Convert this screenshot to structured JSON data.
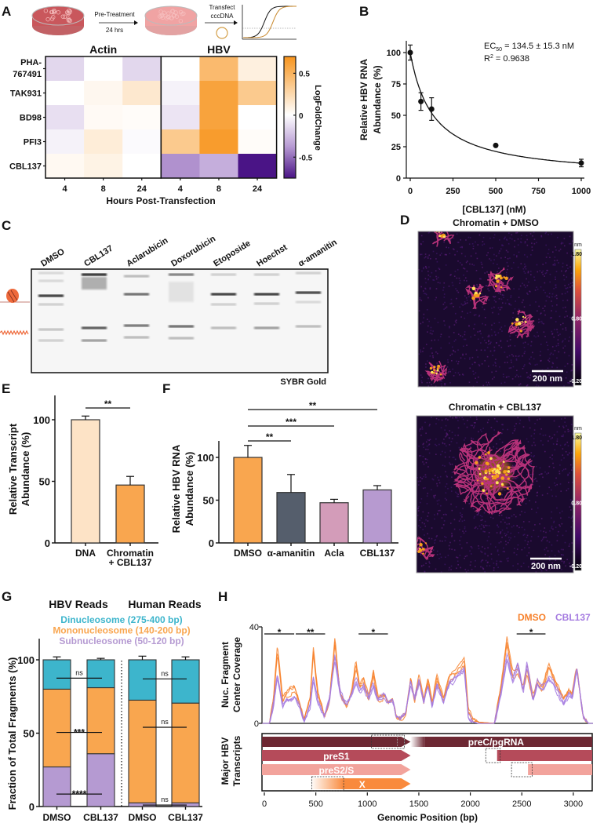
{
  "panel_labels": [
    "A",
    "B",
    "C",
    "D",
    "E",
    "F",
    "G",
    "H"
  ],
  "schematic": {
    "step1": "Pre-Treatment",
    "step1_time": "24 hrs",
    "step2_line1": "Transfect",
    "step2_line2": "cccDNA",
    "colors": {
      "dish1": "#c9575c",
      "dish2": "#f0a3a3",
      "curve_control": "#111111",
      "curve_treated": "#c8892e"
    }
  },
  "chart_data": [
    {
      "id": "A",
      "type": "heatmap",
      "groups": [
        "Actin",
        "HBV"
      ],
      "rows": [
        "PHA-767491",
        "TAK931",
        "BD98",
        "PFI3",
        "CBL137"
      ],
      "columns": [
        "4",
        "8",
        "24",
        "4",
        "8",
        "24"
      ],
      "xlabel": "Hours Post-Transfection",
      "colorbar_label": "LogFoldChange",
      "colorbar_ticks": [
        "0.5",
        "0",
        "-0.5"
      ],
      "colorbar_tick_values": [
        0.5,
        0,
        -0.5
      ],
      "zlim": [
        -0.75,
        0.7
      ],
      "values": [
        [
          -0.15,
          0.0,
          -0.15,
          0.0,
          0.45,
          0.1
        ],
        [
          0.0,
          0.05,
          0.15,
          -0.05,
          0.6,
          0.35
        ],
        [
          -0.12,
          0.03,
          0.02,
          -0.1,
          0.6,
          0.0
        ],
        [
          -0.05,
          0.12,
          -0.02,
          0.35,
          0.65,
          0.02
        ],
        [
          0.04,
          0.08,
          0.0,
          -0.4,
          -0.3,
          -0.75
        ]
      ],
      "colors": {
        "positive": "#f7941d",
        "zero": "#ffffff",
        "mid_negative": "#b79ad3",
        "negative": "#4a1486"
      }
    },
    {
      "id": "B",
      "type": "scatter",
      "x": [
        0,
        62.5,
        125,
        500,
        1000
      ],
      "y": [
        100,
        61,
        55,
        26,
        12
      ],
      "yerr": [
        6,
        7,
        9,
        0,
        3
      ],
      "xlabel": "[CBL137] (nM)",
      "ylabel_lines": [
        "Relative HBV RNA",
        "Abundance (%)"
      ],
      "xticks": [
        0,
        250,
        500,
        750,
        1000
      ],
      "yticks": [
        0,
        25,
        50,
        75,
        100
      ],
      "xlim": [
        0,
        1000
      ],
      "ylim": [
        0,
        110
      ],
      "fit": {
        "ec50": 134.5
      },
      "annotation": {
        "ec50_prefix": "EC",
        "ec50_sub": "50",
        "ec50_value": " = 134.5 ± 15.3 nM",
        "r2_prefix": "R",
        "r2_sup": "2",
        "r2_value": " = 0.9638"
      }
    },
    {
      "id": "E",
      "type": "bar",
      "categories": [
        "DNA",
        "Chromatin"
      ],
      "category_sublabel": "+ CBL137",
      "values": [
        100,
        47
      ],
      "errors": [
        3,
        7
      ],
      "colors": [
        "#fde3c6",
        "#f9a64f"
      ],
      "ylabel_lines": [
        "Relative Transcript",
        "Abundance (%)"
      ],
      "yticks": [
        0,
        50,
        100
      ],
      "ylim": [
        0,
        120
      ],
      "significance": [
        {
          "from": 0,
          "to": 1,
          "label": "**"
        }
      ]
    },
    {
      "id": "F",
      "type": "bar",
      "categories": [
        "DMSO",
        "α-amanitin",
        "Acla",
        "CBL137"
      ],
      "values": [
        100,
        59,
        47,
        62
      ],
      "errors": [
        14,
        21,
        4,
        5
      ],
      "colors": [
        "#f9a64f",
        "#555e6c",
        "#d39cb9",
        "#b79ad0"
      ],
      "ylabel_lines": [
        "Relative HBV RNA",
        "Abundance (%)"
      ],
      "yticks": [
        0,
        50,
        100
      ],
      "ylim": [
        0,
        120
      ],
      "significance": [
        {
          "from": 0,
          "to": 1,
          "label": "**"
        },
        {
          "from": 0,
          "to": 2,
          "label": "***"
        },
        {
          "from": 0,
          "to": 3,
          "label": "**"
        }
      ]
    },
    {
      "id": "G",
      "type": "bar",
      "stacked": true,
      "groups": [
        "HBV Reads",
        "Human Reads"
      ],
      "categories": [
        "DMSO",
        "CBL137",
        "DMSO",
        "CBL137"
      ],
      "legend": [
        "Dinucleosome (275-400 bp)",
        "Mononucleosome (140-200 bp)",
        "Subnucleosome (50-120 bp)"
      ],
      "series": [
        {
          "name": "Subnucleosome (50-120 bp)",
          "color": "#b59ad2",
          "values": [
            27,
            36,
            2.5,
            2.5
          ],
          "errors": [
            3,
            2,
            0.5,
            0.5
          ]
        },
        {
          "name": "Mononucleosome (140-200 bp)",
          "color": "#f9a64f",
          "values": [
            53,
            45,
            70,
            68
          ],
          "errors": [
            2,
            1.5,
            3,
            1.5
          ]
        },
        {
          "name": "Dinucleosome (275-400 bp)",
          "color": "#3db5cc",
          "values": [
            20,
            19,
            27.5,
            29.5
          ],
          "errors": [
            2,
            1,
            2.5,
            2
          ]
        }
      ],
      "ylabel": "Fraction of Total Fragments (%)",
      "yticks": [
        0,
        50,
        100
      ],
      "ylim": [
        0,
        105
      ],
      "significance": [
        {
          "group": 0,
          "level": 87.5,
          "label": "ns"
        },
        {
          "group": 0,
          "level": 50.5,
          "label": "***"
        },
        {
          "group": 0,
          "level": 8.5,
          "label": "****"
        },
        {
          "group": 1,
          "level": 87,
          "label": "ns"
        },
        {
          "group": 1,
          "level": 54,
          "label": "ns"
        },
        {
          "group": 1,
          "level": 1,
          "label": "ns"
        }
      ]
    },
    {
      "id": "H",
      "type": "line",
      "xlabel": "Genomic Position (bp)",
      "ylabel_lines": [
        "Nuc. Fragment",
        "Center Coverage"
      ],
      "xticks": [
        0,
        500,
        1000,
        1500,
        2000,
        2500,
        3000
      ],
      "yticks": [
        0,
        40
      ],
      "xlim": [
        0,
        3200
      ],
      "ylim": [
        0,
        40
      ],
      "series": [
        {
          "name": "DMSO",
          "color": "#f7812b",
          "replicates": 3
        },
        {
          "name": "CBL137",
          "color": "#a57be0",
          "replicates": 3
        }
      ],
      "profile": {
        "bp": [
          0,
          50,
          90,
          127,
          178,
          215,
          292,
          343,
          386,
          444,
          477,
          520,
          584,
          634,
          685,
          736,
          800,
          850,
          888,
          926,
          964,
          1015,
          1058,
          1104,
          1168,
          1205,
          1244,
          1282,
          1320,
          1371,
          1421,
          1459,
          1503,
          1548,
          1589,
          1629,
          1675,
          1739,
          1802,
          1865,
          1942,
          1980,
          2030,
          2081,
          2234,
          2297,
          2355,
          2411,
          2462,
          2513,
          2551,
          2609,
          2652,
          2698,
          2761,
          2817,
          2906,
          2957,
          2990,
          3033,
          3096,
          3147,
          3200
        ],
        "DMSO": [
          0,
          0,
          10,
          31,
          10,
          12,
          15,
          8,
          2,
          10,
          30,
          12,
          3,
          10,
          34,
          12,
          7,
          13,
          24,
          15,
          18,
          10,
          21,
          10,
          12,
          9,
          10,
          3,
          2,
          4,
          19,
          10,
          19,
          9,
          18,
          8,
          19,
          10,
          19,
          21,
          25,
          5,
          2,
          0.5,
          0,
          15,
          34,
          20,
          22,
          14,
          22,
          10,
          17,
          15,
          24,
          18,
          10,
          14,
          12,
          23,
          3,
          0,
          0
        ],
        "CBL137": [
          0,
          0,
          8,
          20,
          7,
          10,
          11,
          7,
          0.5,
          7,
          19,
          9,
          3,
          10,
          28,
          12,
          7,
          12,
          18,
          13,
          15,
          10,
          16,
          10,
          12,
          9,
          10,
          3,
          2,
          4,
          17,
          10,
          17,
          9,
          16,
          7,
          16,
          9,
          17,
          19,
          23,
          3,
          0.5,
          0,
          0,
          12,
          27,
          18,
          24,
          13,
          24,
          9,
          17,
          14,
          19,
          16,
          8,
          12,
          10,
          23,
          3,
          0,
          0
        ]
      },
      "significance": [
        {
          "start": 0,
          "end": 290,
          "label": "*"
        },
        {
          "start": 305,
          "end": 590,
          "label": "**"
        },
        {
          "start": 915,
          "end": 1200,
          "label": "*"
        },
        {
          "start": 2450,
          "end": 2730,
          "label": "*"
        }
      ],
      "transcripts": {
        "ylabel_lines": [
          "Major HBV",
          "Transcripts"
        ],
        "items": [
          {
            "name": "preC/pgRNA",
            "color": "#6d2833",
            "start": 0,
            "arrow_end": 1420,
            "resume": 1560,
            "end": 3200,
            "dashed": [
              [
                1040,
                1360
              ],
              [
                1290,
                1360
              ]
            ]
          },
          {
            "name": "preS1",
            "color": "#b54b5a",
            "start": 0,
            "arrow_end": 1420,
            "resume": 2260,
            "end": 3200,
            "dashed": [
              [
                2150,
                2290
              ]
            ]
          },
          {
            "name": "preS2/S",
            "color": "#f2a39c",
            "start": 0,
            "arrow_end": 1420,
            "resume": 2560,
            "end": 3200,
            "dashed": [
              [
                2400,
                2600
              ]
            ]
          },
          {
            "name": "X",
            "color": "#f98a3d",
            "start": 450,
            "arrow_end": 1420,
            "fade_end": 770,
            "dashed": [
              [
                460,
                770
              ]
            ]
          }
        ]
      }
    }
  ],
  "gel": {
    "lanes": [
      "DMSO",
      "CBL137",
      "Aclarubicin",
      "Doxorubicin",
      "Etoposide",
      "Hoechst",
      "α-amanitin"
    ],
    "stain": "SYBR Gold"
  },
  "afm": {
    "images": [
      {
        "title": "Chromatin + DMSO",
        "scale_bar": "200 nm"
      },
      {
        "title": "Chromatin + CBL137",
        "scale_bar": "200 nm"
      }
    ],
    "colorbar_unit": "nm",
    "colorbar_ticks": [
      "1.80",
      "0.80",
      "-0.20"
    ]
  }
}
